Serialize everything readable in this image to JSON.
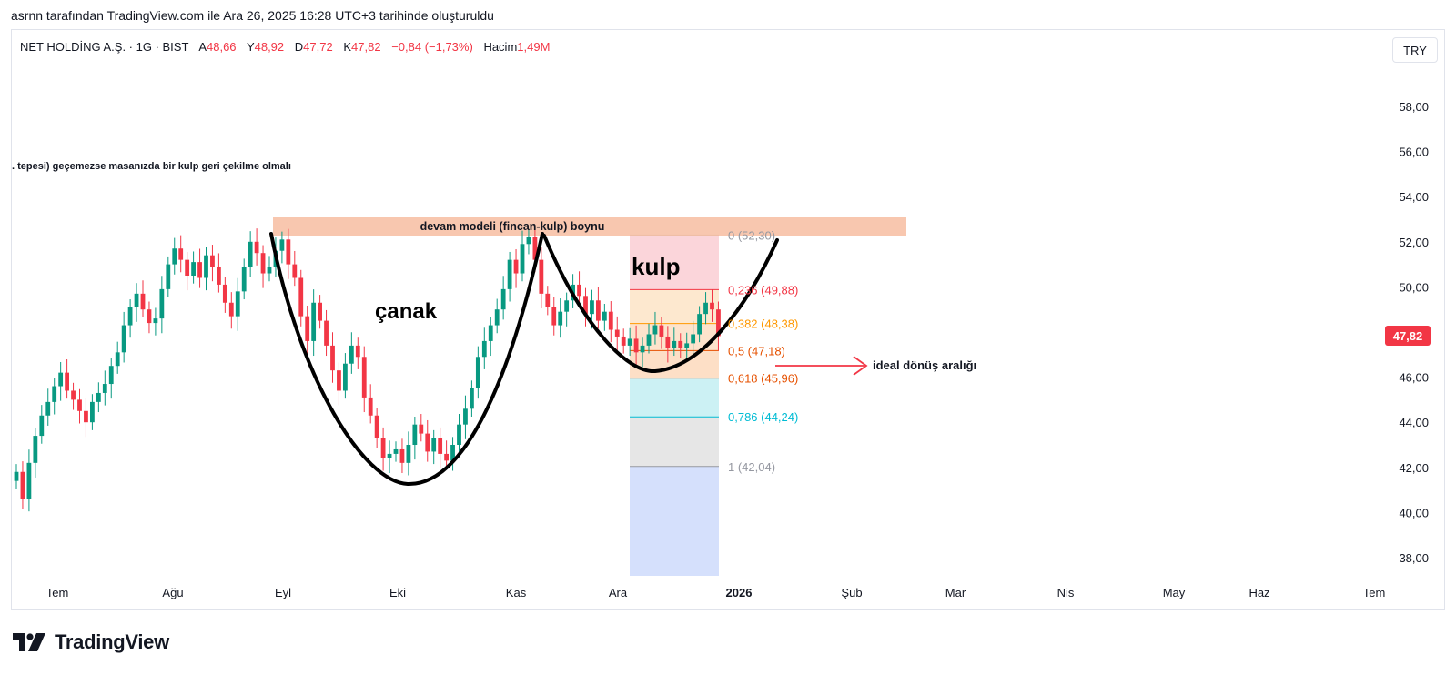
{
  "caption": "asrnn tarafından TradingView.com ile Ara 26, 2025 16:28 UTC+3 tarihinde oluşturuldu",
  "legend": {
    "symbol": "NET HOLDİNG A.Ş. · 1G · BIST",
    "open_label": "A",
    "open": "48,66",
    "high_label": "Y",
    "high": "48,92",
    "low_label": "D",
    "low": "47,72",
    "close_label": "K",
    "close": "47,82",
    "change": "−0,84 (−1,73%)",
    "volume_label": "Hacim",
    "volume": "1,49M"
  },
  "currency_button": "TRY",
  "brand": "TradingView",
  "colors": {
    "up": "#089981",
    "down": "#f23645",
    "price_tag": "#f23645"
  },
  "chart_data": {
    "type": "candlestick",
    "y_axis": {
      "range": [
        36.9,
        59.7
      ],
      "ticks": [
        "58,00",
        "56,00",
        "54,00",
        "52,00",
        "50,00",
        "48,00",
        "46,00",
        "44,00",
        "42,00",
        "40,00",
        "38,00"
      ]
    },
    "x_axis": {
      "ticks": [
        "Tem",
        "Ağu",
        "Eyl",
        "Eki",
        "Kas",
        "Ara",
        "2026",
        "Şub",
        "Mar",
        "Nis",
        "May",
        "Haz",
        "Tem"
      ]
    },
    "last_price_label": "47,82",
    "close_series_start_index": 0,
    "candles_approx_close": [
      41.8,
      40.6,
      42.2,
      43.4,
      44.3,
      44.9,
      45.6,
      46.2,
      45.4,
      45.0,
      44.5,
      44.0,
      44.9,
      45.3,
      45.7,
      46.5,
      47.1,
      48.3,
      49.1,
      49.7,
      49.0,
      48.4,
      48.6,
      49.9,
      51.0,
      51.7,
      51.2,
      50.5,
      51.1,
      50.4,
      51.4,
      50.9,
      50.1,
      49.3,
      48.7,
      49.8,
      50.9,
      52.0,
      51.5,
      50.6,
      50.9,
      51.6,
      52.1,
      51.0,
      50.4,
      48.7,
      47.6,
      49.3,
      48.5,
      47.4,
      46.3,
      45.4,
      46.6,
      47.4,
      46.9,
      45.1,
      44.3,
      43.3,
      42.4,
      42.6,
      42.8,
      42.2,
      43.0,
      43.9,
      43.5,
      42.7,
      43.3,
      42.6,
      42.3,
      43.0,
      43.9,
      44.6,
      45.5,
      46.9,
      47.6,
      48.3,
      49.0,
      49.9,
      51.2,
      50.6,
      51.9,
      52.2,
      51.2,
      49.7,
      49.1,
      48.3,
      48.9,
      49.4,
      50.1,
      49.6,
      48.8,
      49.4,
      48.5,
      48.9,
      48.1,
      47.8,
      47.4,
      47.7,
      47.1,
      47.4,
      47.9,
      48.3,
      47.8,
      47.3,
      47.6,
      47.3,
      47.5,
      47.9,
      48.8,
      49.3,
      49.0,
      47.82
    ],
    "fibonacci": {
      "levels": [
        {
          "label": "0 (52,30)",
          "value": 52.3,
          "color": "#9598a1"
        },
        {
          "label": "0,236 (49,88)",
          "value": 49.88,
          "color": "#f23645"
        },
        {
          "label": "0,382 (48,38)",
          "value": 48.38,
          "color": "#ff9800"
        },
        {
          "label": "0,5 (47,18)",
          "value": 47.18,
          "color": "#e65100"
        },
        {
          "label": "0,618 (45,96)",
          "value": 45.96,
          "color": "#e65100"
        },
        {
          "label": "0,786 (44,24)",
          "value": 44.24,
          "color": "#00bcd4"
        },
        {
          "label": "1 (42,04)",
          "value": 42.04,
          "color": "#9598a1"
        }
      ]
    },
    "annotations": {
      "top_note": ". tepesi) geçemezse masanızda bir kulp geri çekilme olmalı",
      "neckline_label": "devam modeli (fincan-kulp) boynu",
      "cup_label": "çanak",
      "handle_label": "kulp",
      "arrow_label": "ideal dönüş aralığı"
    }
  }
}
